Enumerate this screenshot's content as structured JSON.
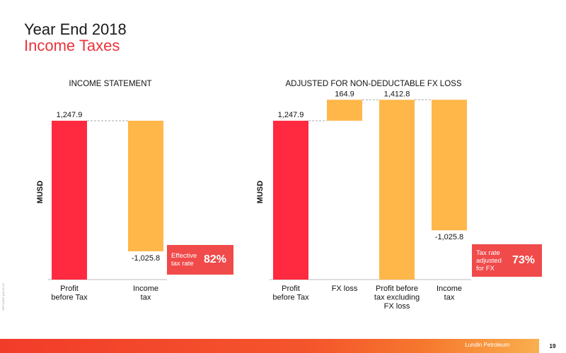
{
  "slide": {
    "title": "Year End 2018",
    "subtitle": "Income Taxes",
    "footer_brand": "Lundin Petroleum",
    "page_number": "19",
    "side_text": "WPTJ2367 p16 01.19"
  },
  "colors": {
    "profit": "#ff2a40",
    "tax": "#ffb74a",
    "badge": "#f04a4a",
    "accent_title": "#e8343c"
  },
  "chart_data": [
    {
      "type": "bar",
      "subtype": "waterfall",
      "title": "INCOME STATEMENT",
      "ylabel": "MUSD",
      "categories": [
        "Profit\nbefore Tax",
        "Income\ntax"
      ],
      "values": [
        1247.9,
        -1025.8
      ],
      "value_labels": [
        "1,247.9",
        "-1,025.8"
      ],
      "bar_colors": [
        "#ff2a40",
        "#ffb74a"
      ],
      "annotation": {
        "label": "Effective\ntax rate",
        "value": "82%"
      }
    },
    {
      "type": "bar",
      "subtype": "waterfall",
      "title": "ADJUSTED FOR NON-DEDUCTABLE FX LOSS",
      "ylabel": "MUSD",
      "categories": [
        "Profit\nbefore Tax",
        "FX loss",
        "Profit before\ntax excluding\nFX loss",
        "Income\ntax"
      ],
      "values": [
        1247.9,
        164.9,
        1412.8,
        -1025.8
      ],
      "value_labels": [
        "1,247.9",
        "164.9",
        "1,412.8",
        "-1,025.8"
      ],
      "bar_colors": [
        "#ff2a40",
        "#ffb74a",
        "#ffb74a",
        "#ffb74a"
      ],
      "annotation": {
        "label": "Tax rate\nadjusted\nfor FX",
        "value": "73%"
      }
    }
  ]
}
